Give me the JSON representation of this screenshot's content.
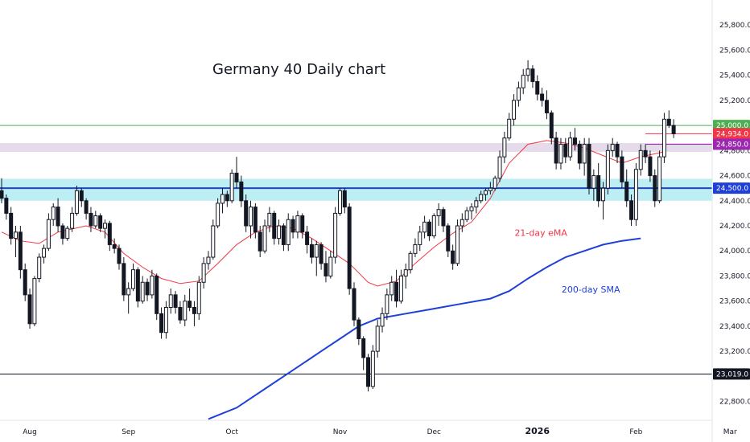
{
  "chart_data": {
    "type": "candlestick",
    "title": "Germany 40 Daily chart",
    "ylim": [
      22650,
      26000
    ],
    "y_ticks": [
      "25,800.0",
      "25,600.0",
      "25,400.0",
      "25,200.0",
      "25,000.0",
      "24,800.0",
      "24,600.0",
      "24,400.0",
      "24,200.0",
      "24,000.0",
      "23,800.0",
      "23,600.0",
      "23,400.0",
      "23,200.0",
      "23,000.0",
      "22,800.0"
    ],
    "y_tick_values": [
      25800,
      25600,
      25400,
      25200,
      25000,
      24800,
      24600,
      24400,
      24200,
      24000,
      23800,
      23600,
      23400,
      23200,
      23000,
      22800
    ],
    "x_ticks": [
      {
        "label": "Aug",
        "bar": 6,
        "bold": false
      },
      {
        "label": "Sep",
        "bar": 27,
        "bold": false
      },
      {
        "label": "Oct",
        "bar": 49,
        "bold": false
      },
      {
        "label": "Nov",
        "bar": 72,
        "bold": false
      },
      {
        "label": "Dec",
        "bar": 92,
        "bold": false
      },
      {
        "label": "2026",
        "bar": 114,
        "bold": true
      },
      {
        "label": "Feb",
        "bar": 135,
        "bold": false
      },
      {
        "label": "Mar",
        "bar": 155,
        "bold": false
      }
    ],
    "zones": [
      {
        "from": 24400,
        "to": 24575,
        "color": "#b2ebf2"
      },
      {
        "from": 24790,
        "to": 24860,
        "color": "#e1d5e7"
      }
    ],
    "levels": [
      {
        "value": 25000,
        "label": "25,000.0",
        "color": "#4caf50",
        "line": true
      },
      {
        "value": 24934,
        "label": "24,934.0",
        "color": "#f23645",
        "line": true
      },
      {
        "value": 24850,
        "label": "24,850.0",
        "color": "#9c27b0",
        "line": false
      },
      {
        "value": 24500,
        "label": "24,500.0",
        "color": "#1e40d8",
        "line": true
      },
      {
        "value": 23019,
        "label": "23,019.0",
        "color": "#131722",
        "line": true
      }
    ],
    "annotations": [
      {
        "text": "21-day eMA",
        "color": "#f23645",
        "bar": 116,
        "value": 24120
      },
      {
        "text": "200-day SMA",
        "color": "#1e40d8",
        "bar": 126,
        "value": 23670
      }
    ],
    "candles": [
      [
        24480,
        24580,
        24380,
        24420
      ],
      [
        24420,
        24450,
        24250,
        24300
      ],
      [
        24300,
        24350,
        24050,
        24100
      ],
      [
        24100,
        24200,
        23950,
        24150
      ],
      [
        24150,
        24200,
        23780,
        23850
      ],
      [
        23850,
        23900,
        23600,
        23650
      ],
      [
        23650,
        23700,
        23380,
        23420
      ],
      [
        23420,
        23800,
        23400,
        23780
      ],
      [
        23780,
        23980,
        23750,
        23950
      ],
      [
        23950,
        24050,
        23900,
        24020
      ],
      [
        24020,
        24300,
        24000,
        24250
      ],
      [
        24250,
        24380,
        24200,
        24350
      ],
      [
        24350,
        24420,
        24150,
        24200
      ],
      [
        24200,
        24220,
        24050,
        24100
      ],
      [
        24100,
        24200,
        24080,
        24180
      ],
      [
        24180,
        24350,
        24150,
        24300
      ],
      [
        24300,
        24520,
        24280,
        24480
      ],
      [
        24480,
        24500,
        24350,
        24400
      ],
      [
        24400,
        24420,
        24250,
        24300
      ],
      [
        24300,
        24350,
        24150,
        24200
      ],
      [
        24200,
        24320,
        24180,
        24280
      ],
      [
        24280,
        24300,
        24150,
        24180
      ],
      [
        24180,
        24250,
        24100,
        24220
      ],
      [
        24220,
        24240,
        24000,
        24050
      ],
      [
        24050,
        24100,
        23980,
        24020
      ],
      [
        24020,
        24050,
        23850,
        23900
      ],
      [
        23900,
        23950,
        23600,
        23650
      ],
      [
        23650,
        23750,
        23500,
        23700
      ],
      [
        23700,
        23900,
        23680,
        23850
      ],
      [
        23850,
        23870,
        23550,
        23600
      ],
      [
        23600,
        23800,
        23580,
        23750
      ],
      [
        23750,
        23780,
        23600,
        23650
      ],
      [
        23650,
        23850,
        23620,
        23800
      ],
      [
        23800,
        23820,
        23450,
        23500
      ],
      [
        23500,
        23550,
        23300,
        23350
      ],
      [
        23350,
        23600,
        23300,
        23550
      ],
      [
        23550,
        23700,
        23500,
        23650
      ],
      [
        23650,
        23680,
        23500,
        23550
      ],
      [
        23550,
        23600,
        23420,
        23450
      ],
      [
        23450,
        23650,
        23400,
        23600
      ],
      [
        23600,
        23700,
        23520,
        23550
      ],
      [
        23550,
        23600,
        23400,
        23500
      ],
      [
        23500,
        23800,
        23450,
        23750
      ],
      [
        23750,
        23950,
        23700,
        23900
      ],
      [
        23900,
        24000,
        23850,
        23950
      ],
      [
        23950,
        24250,
        23930,
        24200
      ],
      [
        24200,
        24420,
        24180,
        24380
      ],
      [
        24380,
        24500,
        24300,
        24450
      ],
      [
        24450,
        24480,
        24350,
        24400
      ],
      [
        24400,
        24650,
        24380,
        24620
      ],
      [
        24620,
        24750,
        24500,
        24550
      ],
      [
        24550,
        24600,
        24350,
        24400
      ],
      [
        24400,
        24450,
        24150,
        24200
      ],
      [
        24200,
        24400,
        24100,
        24350
      ],
      [
        24350,
        24380,
        24100,
        24150
      ],
      [
        24150,
        24200,
        23950,
        24000
      ],
      [
        24000,
        24250,
        23980,
        24200
      ],
      [
        24200,
        24350,
        24150,
        24300
      ],
      [
        24300,
        24320,
        24050,
        24100
      ],
      [
        24100,
        24250,
        24050,
        24200
      ],
      [
        24200,
        24220,
        24000,
        24050
      ],
      [
        24050,
        24300,
        24000,
        24250
      ],
      [
        24250,
        24280,
        24100,
        24150
      ],
      [
        24150,
        24320,
        24100,
        24280
      ],
      [
        24280,
        24300,
        24100,
        24150
      ],
      [
        24150,
        24200,
        23980,
        24050
      ],
      [
        24050,
        24100,
        23900,
        23950
      ],
      [
        23950,
        24080,
        23800,
        24050
      ],
      [
        24050,
        24070,
        23850,
        23900
      ],
      [
        23900,
        24000,
        23750,
        23800
      ],
      [
        23800,
        24000,
        23780,
        23950
      ],
      [
        23950,
        24350,
        23900,
        24300
      ],
      [
        24300,
        24500,
        24280,
        24480
      ],
      [
        24480,
        24500,
        24300,
        24350
      ],
      [
        24350,
        24380,
        23650,
        23700
      ],
      [
        23700,
        23750,
        23400,
        23450
      ],
      [
        23450,
        23470,
        23250,
        23300
      ],
      [
        23300,
        23320,
        23050,
        23150
      ],
      [
        23150,
        23180,
        22880,
        22920
      ],
      [
        22920,
        23250,
        22900,
        23200
      ],
      [
        23200,
        23450,
        23150,
        23400
      ],
      [
        23400,
        23550,
        23350,
        23500
      ],
      [
        23500,
        23700,
        23450,
        23650
      ],
      [
        23650,
        23800,
        23600,
        23750
      ],
      [
        23750,
        23850,
        23550,
        23600
      ],
      [
        23600,
        23850,
        23580,
        23800
      ],
      [
        23800,
        23900,
        23700,
        23850
      ],
      [
        23850,
        24000,
        23820,
        23980
      ],
      [
        23980,
        24100,
        23950,
        24050
      ],
      [
        24050,
        24200,
        24000,
        24150
      ],
      [
        24150,
        24280,
        24100,
        24230
      ],
      [
        24230,
        24250,
        24080,
        24120
      ],
      [
        24120,
        24300,
        24100,
        24280
      ],
      [
        24280,
        24380,
        24200,
        24330
      ],
      [
        24330,
        24350,
        24150,
        24200
      ],
      [
        24200,
        24220,
        23950,
        24000
      ],
      [
        24000,
        24050,
        23850,
        23900
      ],
      [
        23900,
        24250,
        23880,
        24200
      ],
      [
        24200,
        24300,
        24150,
        24250
      ],
      [
        24250,
        24350,
        24230,
        24320
      ],
      [
        24320,
        24380,
        24250,
        24350
      ],
      [
        24350,
        24430,
        24300,
        24400
      ],
      [
        24400,
        24480,
        24380,
        24450
      ],
      [
        24450,
        24500,
        24400,
        24480
      ],
      [
        24480,
        24550,
        24450,
        24500
      ],
      [
        24500,
        24600,
        24480,
        24580
      ],
      [
        24580,
        24800,
        24550,
        24750
      ],
      [
        24750,
        24950,
        24700,
        24900
      ],
      [
        24900,
        25100,
        24880,
        25050
      ],
      [
        25050,
        25250,
        25000,
        25200
      ],
      [
        25200,
        25350,
        25150,
        25300
      ],
      [
        25300,
        25450,
        25250,
        25400
      ],
      [
        25400,
        25520,
        25350,
        25450
      ],
      [
        25450,
        25480,
        25300,
        25350
      ],
      [
        25350,
        25400,
        25200,
        25250
      ],
      [
        25250,
        25300,
        25150,
        25200
      ],
      [
        25200,
        25280,
        25050,
        25100
      ],
      [
        25100,
        25120,
        24850,
        24900
      ],
      [
        24900,
        24950,
        24650,
        24700
      ],
      [
        24700,
        24900,
        24650,
        24850
      ],
      [
        24850,
        24900,
        24700,
        24750
      ],
      [
        24750,
        24950,
        24720,
        24900
      ],
      [
        24900,
        24980,
        24800,
        24850
      ],
      [
        24850,
        24880,
        24650,
        24700
      ],
      [
        24700,
        24900,
        24600,
        24850
      ],
      [
        24850,
        24900,
        24450,
        24500
      ],
      [
        24500,
        24650,
        24400,
        24600
      ],
      [
        24600,
        24700,
        24350,
        24400
      ],
      [
        24400,
        24550,
        24250,
        24500
      ],
      [
        24500,
        24850,
        24450,
        24800
      ],
      [
        24800,
        24900,
        24750,
        24850
      ],
      [
        24850,
        24870,
        24700,
        24750
      ],
      [
        24750,
        24800,
        24500,
        24550
      ],
      [
        24550,
        24650,
        24350,
        24400
      ],
      [
        24400,
        24450,
        24200,
        24250
      ],
      [
        24250,
        24700,
        24200,
        24650
      ],
      [
        24650,
        24850,
        24600,
        24800
      ],
      [
        24800,
        24850,
        24700,
        24750
      ],
      [
        24750,
        24800,
        24550,
        24600
      ],
      [
        24600,
        24650,
        24350,
        24400
      ],
      [
        24400,
        24800,
        24380,
        24750
      ],
      [
        24750,
        25100,
        24700,
        25050
      ],
      [
        25050,
        25120,
        24980,
        25000
      ],
      [
        25000,
        25050,
        24900,
        24934
      ]
    ],
    "ema21": [
      [
        0,
        24150
      ],
      [
        4,
        24080
      ],
      [
        8,
        24060
      ],
      [
        12,
        24150
      ],
      [
        18,
        24200
      ],
      [
        22,
        24150
      ],
      [
        26,
        23980
      ],
      [
        30,
        23870
      ],
      [
        34,
        23780
      ],
      [
        38,
        23740
      ],
      [
        42,
        23760
      ],
      [
        46,
        23900
      ],
      [
        50,
        24050
      ],
      [
        54,
        24150
      ],
      [
        58,
        24200
      ],
      [
        62,
        24180
      ],
      [
        66,
        24100
      ],
      [
        70,
        24000
      ],
      [
        74,
        23900
      ],
      [
        78,
        23750
      ],
      [
        80,
        23720
      ],
      [
        84,
        23760
      ],
      [
        88,
        23900
      ],
      [
        92,
        24030
      ],
      [
        96,
        24140
      ],
      [
        100,
        24230
      ],
      [
        104,
        24420
      ],
      [
        108,
        24700
      ],
      [
        112,
        24850
      ],
      [
        116,
        24880
      ],
      [
        120,
        24860
      ],
      [
        124,
        24820
      ],
      [
        128,
        24760
      ],
      [
        132,
        24700
      ],
      [
        136,
        24750
      ],
      [
        141,
        24790
      ]
    ],
    "sma200": [
      [
        44,
        22660
      ],
      [
        50,
        22750
      ],
      [
        56,
        22900
      ],
      [
        62,
        23050
      ],
      [
        68,
        23200
      ],
      [
        72,
        23300
      ],
      [
        76,
        23400
      ],
      [
        80,
        23460
      ],
      [
        86,
        23500
      ],
      [
        92,
        23540
      ],
      [
        98,
        23580
      ],
      [
        104,
        23620
      ],
      [
        108,
        23680
      ],
      [
        112,
        23780
      ],
      [
        116,
        23870
      ],
      [
        120,
        23950
      ],
      [
        124,
        24000
      ],
      [
        128,
        24050
      ],
      [
        132,
        24080
      ],
      [
        136,
        24100
      ]
    ]
  }
}
